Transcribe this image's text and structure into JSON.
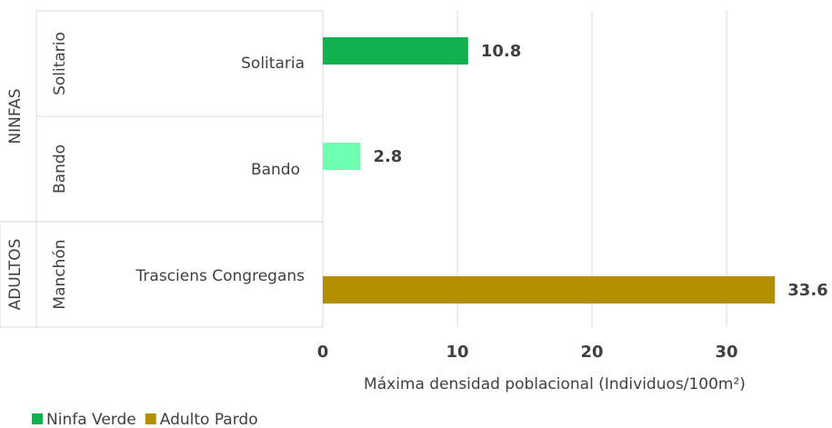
{
  "chart_data": {
    "type": "bar",
    "orientation": "horizontal",
    "categories": [
      "Solitaria",
      "Bando",
      "Trasciens Congregans"
    ],
    "category_groups": [
      "Solitario",
      "Bando",
      "Manchón"
    ],
    "top_groups": [
      "NINFAS",
      "ADULTOS"
    ],
    "values": [
      10.8,
      2.8,
      33.6
    ],
    "colors": [
      "#12b14f",
      "#6dffb2",
      "#b38f00"
    ],
    "xlabel": "Máxima densidad poblacional (Individuos/100m²)",
    "xlim": [
      0,
      37.5
    ],
    "xticks": [
      0,
      10,
      20,
      30
    ],
    "grid": true,
    "legend": [
      {
        "name": "Ninfa Verde",
        "color": "#12b14f"
      },
      {
        "name": "Adulto Pardo",
        "color": "#b38f00"
      }
    ],
    "legend_position": "bottom-left"
  }
}
